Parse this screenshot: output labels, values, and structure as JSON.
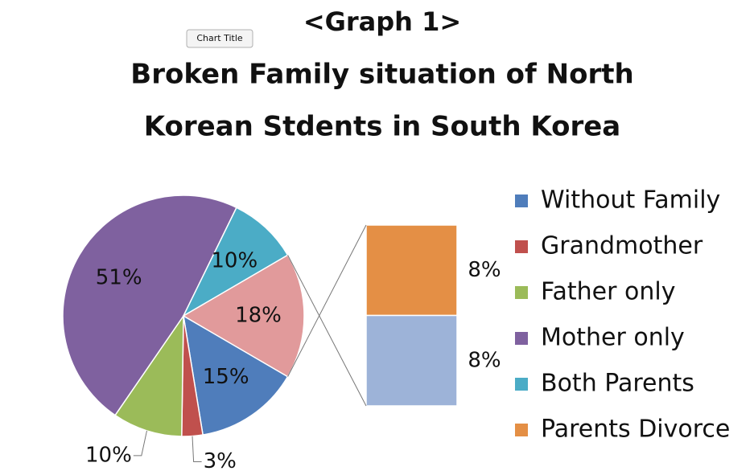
{
  "chart_data": {
    "type": "pie-of-bar",
    "button": "Chart Title",
    "heading": "<Graph 1>",
    "title_lines": [
      "Broken Family situation of North",
      "Korean Stdents in South Korea"
    ],
    "slices": [
      {
        "name": "Without Family",
        "color": "#4f7dbb",
        "value": 15,
        "value_label": "15%"
      },
      {
        "name": "Grandmother",
        "color": "#c0504d",
        "value": 3,
        "value_label": "3%"
      },
      {
        "name": "Father only",
        "color": "#9bbb59",
        "value": 10,
        "value_label": "10%"
      },
      {
        "name": "Mother only",
        "color": "#7f619f",
        "value": 51,
        "value_label": "51%"
      },
      {
        "name": "Both Parents",
        "color": "#4bacc6",
        "value": 10,
        "value_label": "10%"
      },
      {
        "name": null,
        "color": "#e19a9b",
        "value": 18,
        "value_label": "18%"
      }
    ],
    "bar": [
      {
        "name": "Parents Divorce",
        "color": "#e48f45",
        "value": 8,
        "value_label": "8%"
      },
      {
        "name": null,
        "color": "#9db3d8",
        "value": 8,
        "value_label": "8%"
      }
    ],
    "legend": "right"
  }
}
